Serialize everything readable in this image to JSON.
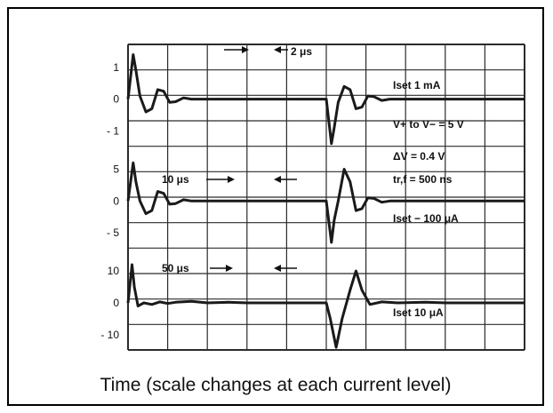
{
  "caption": "Time (scale changes at each current level)",
  "chart_data": {
    "type": "line",
    "title": "",
    "xlabel": "Time (scale changes at each current level)",
    "grid": true,
    "grid_divisions": {
      "x": 10,
      "y": 12
    },
    "colors": {
      "trace": "#1a1a1a",
      "grid": "#2b2b2b",
      "background": "#ffffff"
    },
    "panels": [
      {
        "name": "Iset 1 mA",
        "ticks": [
          "1",
          "0",
          "- 1"
        ],
        "tick_values": [
          1,
          0,
          -1
        ],
        "ylim": [
          -1.6,
          1.6
        ],
        "time_scale_label": "2 μs",
        "settings": [
          "Iset 1 mA",
          "V+ to V− = 5 V"
        ],
        "x": [
          0.0,
          0.13,
          0.2,
          0.3,
          0.45,
          0.6,
          0.75,
          0.9,
          1.05,
          1.2,
          1.4,
          1.6,
          2.0,
          3.0,
          4.0,
          5.0,
          5.13,
          5.2,
          5.3,
          5.45,
          5.6,
          5.75,
          5.9,
          6.05,
          6.2,
          6.4,
          6.6,
          7.0,
          8.0,
          9.0,
          10.0
        ],
        "y": [
          0.0,
          1.4,
          0.9,
          0.1,
          -0.4,
          -0.3,
          0.3,
          0.25,
          -0.1,
          -0.08,
          0.04,
          0.0,
          0.0,
          0.0,
          0.0,
          0.0,
          -1.4,
          -0.9,
          -0.1,
          0.4,
          0.3,
          -0.3,
          -0.25,
          0.1,
          0.08,
          -0.04,
          0.0,
          0.0,
          0.0,
          0.0,
          0.0
        ]
      },
      {
        "name": "Iset 100 μA",
        "ticks": [
          "5",
          "0",
          "- 5"
        ],
        "tick_values": [
          5,
          0,
          -5
        ],
        "ylim": [
          -8,
          8
        ],
        "time_scale_label": "10 μs",
        "settings": [
          "ΔV = 0.4 V",
          "tr,f = 500 ns",
          "Iset − 100 μA"
        ],
        "x": [
          0.0,
          0.13,
          0.2,
          0.3,
          0.45,
          0.6,
          0.75,
          0.9,
          1.05,
          1.2,
          1.4,
          1.6,
          2.0,
          3.0,
          4.0,
          5.0,
          5.13,
          5.2,
          5.3,
          5.45,
          5.6,
          5.75,
          5.9,
          6.05,
          6.2,
          6.4,
          6.6,
          7.0,
          8.0,
          9.0,
          10.0
        ],
        "y": [
          0.0,
          6.0,
          3.0,
          0.0,
          -2.0,
          -1.5,
          1.5,
          1.2,
          -0.5,
          -0.4,
          0.2,
          0.0,
          0.0,
          0.0,
          0.0,
          0.0,
          -6.5,
          -3.0,
          0.0,
          5.0,
          3.0,
          -1.5,
          -1.2,
          0.5,
          0.4,
          -0.2,
          0.0,
          0.0,
          0.0,
          0.0,
          0.0
        ]
      },
      {
        "name": "Iset 10 μA",
        "ticks": [
          "10",
          "0",
          "- 10"
        ],
        "tick_values": [
          10,
          0,
          -10
        ],
        "ylim": [
          -16,
          16
        ],
        "time_scale_label": "50 μs",
        "settings": [
          "Iset 10 μA"
        ],
        "x": [
          0.0,
          0.1,
          0.16,
          0.25,
          0.4,
          0.6,
          0.8,
          1.0,
          1.2,
          1.6,
          2.0,
          2.5,
          3.0,
          4.0,
          5.0,
          5.1,
          5.25,
          5.4,
          5.6,
          5.75,
          5.9,
          6.1,
          6.4,
          6.8,
          7.5,
          8.0,
          9.0,
          10.0
        ],
        "y": [
          0.0,
          12.0,
          5.0,
          -1.0,
          0.0,
          -0.5,
          0.3,
          -0.2,
          0.2,
          0.5,
          0.0,
          0.2,
          0.0,
          0.0,
          0.0,
          -5.0,
          -14.0,
          -5.0,
          4.0,
          10.0,
          4.0,
          -0.5,
          0.3,
          0.0,
          0.2,
          0.0,
          0.0,
          0.0
        ]
      }
    ]
  }
}
